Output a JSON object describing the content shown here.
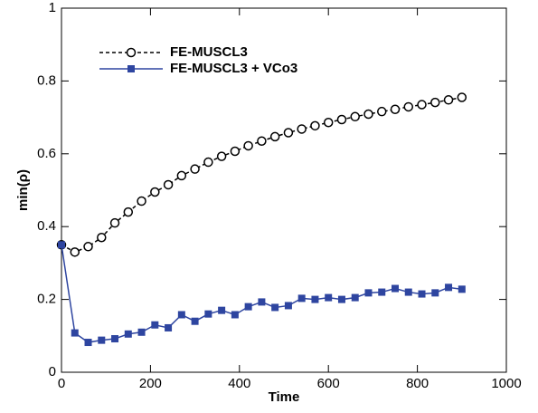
{
  "chart_data": {
    "type": "line",
    "x_label": "Time",
    "y_label": "min(ρ)",
    "x": [
      0,
      30,
      60,
      90,
      120,
      150,
      180,
      210,
      240,
      270,
      300,
      330,
      360,
      390,
      420,
      450,
      480,
      510,
      540,
      570,
      600,
      630,
      660,
      690,
      720,
      750,
      780,
      810,
      840,
      870,
      900
    ],
    "series": [
      {
        "name": "FE-MUSCL3",
        "color": "#000000",
        "dashed": true,
        "marker": "circle",
        "values": [
          0.35,
          0.33,
          0.345,
          0.37,
          0.41,
          0.44,
          0.47,
          0.495,
          0.515,
          0.54,
          0.558,
          0.577,
          0.593,
          0.607,
          0.622,
          0.635,
          0.647,
          0.658,
          0.668,
          0.677,
          0.686,
          0.694,
          0.702,
          0.709,
          0.716,
          0.722,
          0.729,
          0.735,
          0.741,
          0.748,
          0.755
        ]
      },
      {
        "name": "FE-MUSCL3 + VCo3",
        "color": "#2e45a0",
        "dashed": false,
        "marker": "square",
        "values": [
          0.35,
          0.108,
          0.082,
          0.088,
          0.092,
          0.105,
          0.11,
          0.13,
          0.122,
          0.158,
          0.14,
          0.16,
          0.17,
          0.158,
          0.18,
          0.193,
          0.178,
          0.183,
          0.203,
          0.2,
          0.205,
          0.2,
          0.205,
          0.218,
          0.22,
          0.23,
          0.22,
          0.215,
          0.218,
          0.233,
          0.228
        ]
      }
    ],
    "xlim": [
      0,
      1000
    ],
    "xticks": [
      0,
      200,
      400,
      600,
      800,
      1000
    ],
    "ylim": [
      0,
      1
    ],
    "yticks": [
      0,
      0.2,
      0.4,
      0.6,
      0.8,
      1
    ],
    "grid": false,
    "legend": "upper left"
  }
}
